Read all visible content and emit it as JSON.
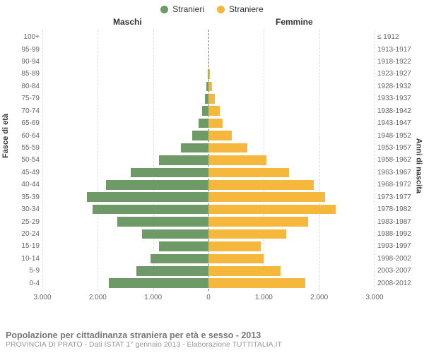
{
  "legend": {
    "male": {
      "label": "Stranieri",
      "color": "#6d9a67"
    },
    "female": {
      "label": "Straniere",
      "color": "#f5b83d"
    }
  },
  "headers": {
    "male": "Maschi",
    "female": "Femmine"
  },
  "axis_titles": {
    "left": "Fasce di età",
    "right": "Anni di nascita"
  },
  "chart": {
    "type": "population-pyramid",
    "max": 3000,
    "x_ticks": [
      "3.000",
      "2.000",
      "1.000",
      "0",
      "1.000",
      "2.000",
      "3.000"
    ],
    "grid_color": "#dddddd",
    "center_color": "#808000",
    "background": "#ffffff",
    "label_fontsize": 10,
    "rows": [
      {
        "age": "100+",
        "birth": "≤ 1912",
        "male": 0,
        "female": 0
      },
      {
        "age": "95-99",
        "birth": "1913-1917",
        "male": 0,
        "female": 0
      },
      {
        "age": "90-94",
        "birth": "1918-1922",
        "male": 0,
        "female": 0
      },
      {
        "age": "85-89",
        "birth": "1923-1927",
        "male": 10,
        "female": 20
      },
      {
        "age": "80-84",
        "birth": "1928-1932",
        "male": 40,
        "female": 60
      },
      {
        "age": "75-79",
        "birth": "1933-1937",
        "male": 60,
        "female": 110
      },
      {
        "age": "70-74",
        "birth": "1938-1942",
        "male": 120,
        "female": 200
      },
      {
        "age": "65-69",
        "birth": "1943-1947",
        "male": 180,
        "female": 260
      },
      {
        "age": "60-64",
        "birth": "1948-1952",
        "male": 300,
        "female": 420
      },
      {
        "age": "55-59",
        "birth": "1953-1957",
        "male": 500,
        "female": 700
      },
      {
        "age": "50-54",
        "birth": "1958-1962",
        "male": 900,
        "female": 1050
      },
      {
        "age": "45-49",
        "birth": "1963-1967",
        "male": 1400,
        "female": 1450
      },
      {
        "age": "40-44",
        "birth": "1968-1972",
        "male": 1850,
        "female": 1900
      },
      {
        "age": "35-39",
        "birth": "1973-1977",
        "male": 2200,
        "female": 2100
      },
      {
        "age": "30-34",
        "birth": "1978-1982",
        "male": 2100,
        "female": 2300
      },
      {
        "age": "25-29",
        "birth": "1983-1987",
        "male": 1650,
        "female": 1800
      },
      {
        "age": "20-24",
        "birth": "1988-1992",
        "male": 1200,
        "female": 1400
      },
      {
        "age": "15-19",
        "birth": "1993-1997",
        "male": 900,
        "female": 950
      },
      {
        "age": "10-14",
        "birth": "1998-2002",
        "male": 1050,
        "female": 1000
      },
      {
        "age": "5-9",
        "birth": "2003-2007",
        "male": 1300,
        "female": 1300
      },
      {
        "age": "0-4",
        "birth": "2008-2012",
        "male": 1800,
        "female": 1750
      }
    ]
  },
  "footer": {
    "title": "Popolazione per cittadinanza straniera per età e sesso - 2013",
    "subtitle": "PROVINCIA DI PRATO - Dati ISTAT 1° gennaio 2013 - Elaborazione TUTTITALIA.IT"
  }
}
